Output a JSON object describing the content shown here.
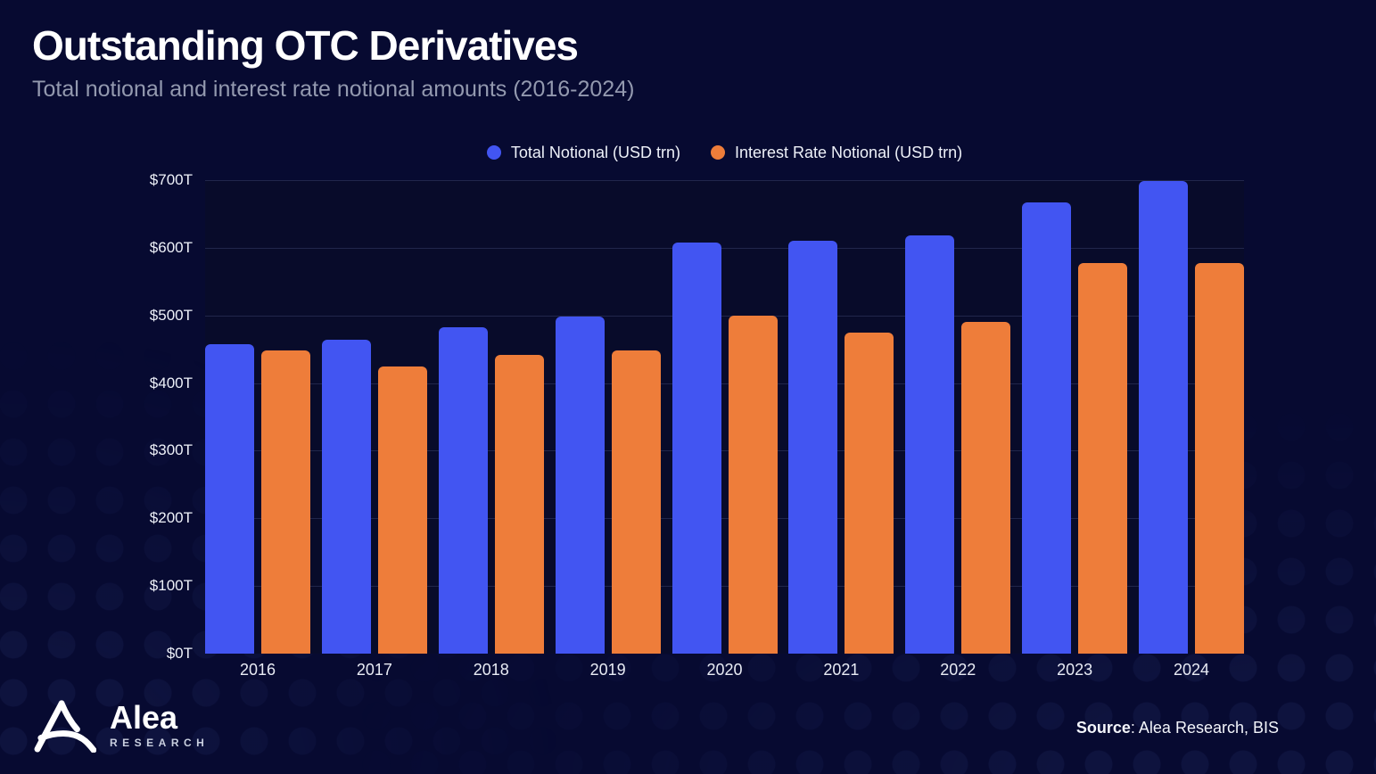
{
  "header": {
    "title": "Outstanding OTC Derivatives",
    "subtitle": "Total notional and interest rate notional amounts (2016-2024)"
  },
  "chart_data": {
    "type": "bar",
    "title": "Outstanding OTC Derivatives",
    "subtitle": "Total notional and interest rate notional amounts (2016-2024)",
    "categories": [
      "2016",
      "2017",
      "2018",
      "2019",
      "2020",
      "2021",
      "2022",
      "2023",
      "2024"
    ],
    "series": [
      {
        "name": "Total Notional (USD trn)",
        "color": "#4255f2",
        "values": [
          458,
          464,
          483,
          498,
          608,
          610,
          618,
          667,
          699
        ]
      },
      {
        "name": "Interest Rate Notional (USD trn)",
        "color": "#ee7d3a",
        "values": [
          448,
          424,
          442,
          448,
          500,
          474,
          490,
          577,
          578
        ]
      }
    ],
    "ylim": [
      0,
      700
    ],
    "y_ticks": [
      {
        "value": 0,
        "label": "$0T"
      },
      {
        "value": 100,
        "label": "$100T"
      },
      {
        "value": 200,
        "label": "$200T"
      },
      {
        "value": 300,
        "label": "$300T"
      },
      {
        "value": 400,
        "label": "$400T"
      },
      {
        "value": 500,
        "label": "$500T"
      },
      {
        "value": 600,
        "label": "$600T"
      },
      {
        "value": 700,
        "label": "$700T"
      }
    ],
    "grid": true,
    "legend_position": "top-center"
  },
  "colors": {
    "page_background": "#070a31",
    "plot_background": "#080b2a",
    "gridline": "#2a3158",
    "title_text": "#ffffff",
    "subtitle_text": "#9399af",
    "axis_text": "#eef1f9",
    "total_notional_bar": "#4255f2",
    "interest_rate_bar": "#ee7d3a"
  },
  "footer": {
    "logo_name": "Alea",
    "logo_subtext": "RESEARCH",
    "source_label": "Source",
    "source_rest": ": Alea Research, BIS"
  }
}
